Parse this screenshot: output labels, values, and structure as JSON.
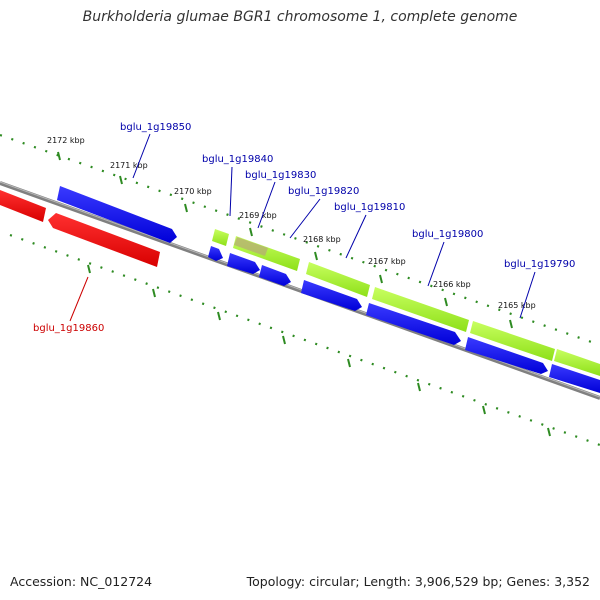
{
  "title": "Burkholderia glumae BGR1 chromosome 1, complete genome",
  "footer": {
    "accession": "Accession: NC_012724",
    "topology": "Topology: circular; Length: 3,906,529 bp; Genes: 3,352"
  },
  "colors": {
    "backbone": "#808080",
    "tick": "#2e8b22",
    "forward_gene": "#0000ff",
    "reverse_gene": "#ff0000",
    "rna_gene": "#aaff33",
    "forward_label": "#0000aa",
    "reverse_label": "#cc0000"
  },
  "kbp_markers": [
    {
      "label": "2172 kbp"
    },
    {
      "label": "2171 kbp"
    },
    {
      "label": "2170 kbp"
    },
    {
      "label": "2169 kbp"
    },
    {
      "label": "2168 kbp"
    },
    {
      "label": "2167 kbp"
    },
    {
      "label": "2166 kbp"
    },
    {
      "label": "2165 kbp"
    }
  ],
  "gene_labels": [
    {
      "label": "bglu_1g19850",
      "strand": "forward"
    },
    {
      "label": "bglu_1g19840",
      "strand": "forward"
    },
    {
      "label": "bglu_1g19830",
      "strand": "forward"
    },
    {
      "label": "bglu_1g19820",
      "strand": "forward"
    },
    {
      "label": "bglu_1g19810",
      "strand": "forward"
    },
    {
      "label": "bglu_1g19800",
      "strand": "forward"
    },
    {
      "label": "bglu_1g19790",
      "strand": "forward"
    },
    {
      "label": "bglu_1g19860",
      "strand": "reverse"
    }
  ]
}
